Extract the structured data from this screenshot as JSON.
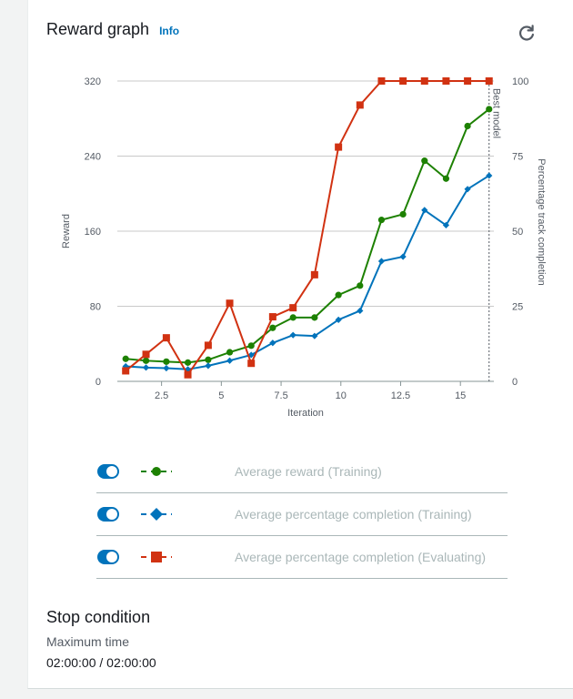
{
  "header": {
    "title": "Reward graph",
    "info_label": "Info",
    "refresh_icon": "refresh-icon"
  },
  "chart_data": {
    "type": "line",
    "xlabel": "Iteration",
    "ylabel": "Reward",
    "y2label": "Percentage track completion",
    "xlim": [
      0.65,
      16.4
    ],
    "ylim": [
      0,
      320
    ],
    "y2lim": [
      0,
      100
    ],
    "x_ticks": [
      "2.5",
      "5",
      "7.5",
      "10",
      "12.5",
      "15"
    ],
    "x_tick_values": [
      2.5,
      5,
      7.5,
      10,
      12.5,
      15
    ],
    "y_ticks": [
      "0",
      "80",
      "160",
      "240",
      "320"
    ],
    "y_tick_values": [
      0,
      80,
      160,
      240,
      320
    ],
    "y2_ticks": [
      "0",
      "25",
      "50",
      "75",
      "100"
    ],
    "y2_tick_values": [
      0,
      25,
      50,
      75,
      100
    ],
    "grid": true,
    "annotation": {
      "label": "Best model",
      "x": 16.2
    },
    "series": [
      {
        "name": "Average reward (Training)",
        "axis": "left",
        "color": "#1d8102",
        "marker": "circle",
        "x": [
          1,
          1.85,
          2.7,
          3.6,
          4.45,
          5.35,
          6.25,
          7.15,
          8,
          8.9,
          9.9,
          10.8,
          11.7,
          12.6,
          13.5,
          14.4,
          15.3,
          16.2
        ],
        "values": [
          24,
          22,
          21,
          20,
          23,
          31,
          38,
          57,
          68,
          68,
          92,
          102,
          172,
          178,
          235,
          216,
          272,
          290
        ]
      },
      {
        "name": "Average percentage completion (Training)",
        "axis": "right",
        "color": "#0073bb",
        "marker": "diamond",
        "x": [
          1,
          1.85,
          2.7,
          3.6,
          4.45,
          5.35,
          6.25,
          7.15,
          8,
          8.9,
          9.9,
          10.8,
          11.7,
          12.6,
          13.5,
          14.4,
          15.3,
          16.2
        ],
        "values": [
          5,
          4.6,
          4.4,
          4,
          5.2,
          6.9,
          8.8,
          12.8,
          15.4,
          15.1,
          20.5,
          23.5,
          40,
          41.5,
          57,
          52,
          64,
          68.5
        ]
      },
      {
        "name": "Average percentage completion (Evaluating)",
        "axis": "right",
        "color": "#d13212",
        "marker": "square",
        "x": [
          1,
          1.85,
          2.7,
          3.6,
          4.45,
          5.35,
          6.25,
          7.15,
          8,
          8.9,
          9.9,
          10.8,
          11.7,
          12.6,
          13.5,
          14.4,
          15.3,
          16.2
        ],
        "values": [
          3.5,
          9,
          14.5,
          2.2,
          12,
          26,
          6,
          21.5,
          24.5,
          35.5,
          78,
          92,
          100,
          100,
          100,
          100,
          100,
          100
        ]
      }
    ]
  },
  "legend": {
    "items": [
      {
        "label": "Average reward (Training)",
        "color": "#1d8102",
        "marker": "circle",
        "enabled": true
      },
      {
        "label": "Average percentage completion (Training)",
        "color": "#0073bb",
        "marker": "diamond",
        "enabled": true
      },
      {
        "label": "Average percentage completion (Evaluating)",
        "color": "#d13212",
        "marker": "square",
        "enabled": true
      }
    ]
  },
  "stop_condition": {
    "title": "Stop condition",
    "key": "Maximum time",
    "value": "02:00:00 / 02:00:00"
  }
}
